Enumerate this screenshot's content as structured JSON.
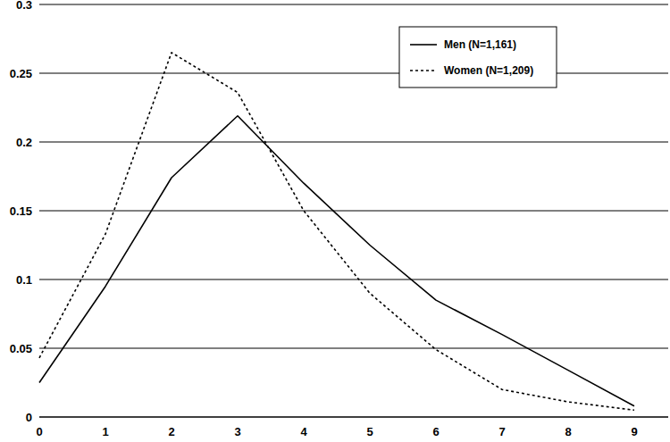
{
  "chart_data": {
    "type": "line",
    "categories": [
      "0",
      "1",
      "2",
      "3",
      "4",
      "5",
      "6",
      "7",
      "8",
      "9"
    ],
    "series": [
      {
        "name": "Men (N=1,161)",
        "color": "#000000",
        "line_style": "solid",
        "values": [
          0.025,
          0.095,
          0.174,
          0.219,
          0.17,
          0.125,
          0.085,
          0.06,
          0.034,
          0.008
        ]
      },
      {
        "name": "Women (N=1,209)",
        "color": "#000000",
        "line_style": "dotted",
        "values": [
          0.043,
          0.133,
          0.265,
          0.236,
          0.15,
          0.09,
          0.049,
          0.02,
          0.011,
          0.005
        ]
      }
    ],
    "ylim": [
      0,
      0.3
    ],
    "yticks": [
      0,
      0.05,
      0.1,
      0.15,
      0.2,
      0.25,
      0.3
    ],
    "grid": true,
    "legend": "top-right"
  }
}
